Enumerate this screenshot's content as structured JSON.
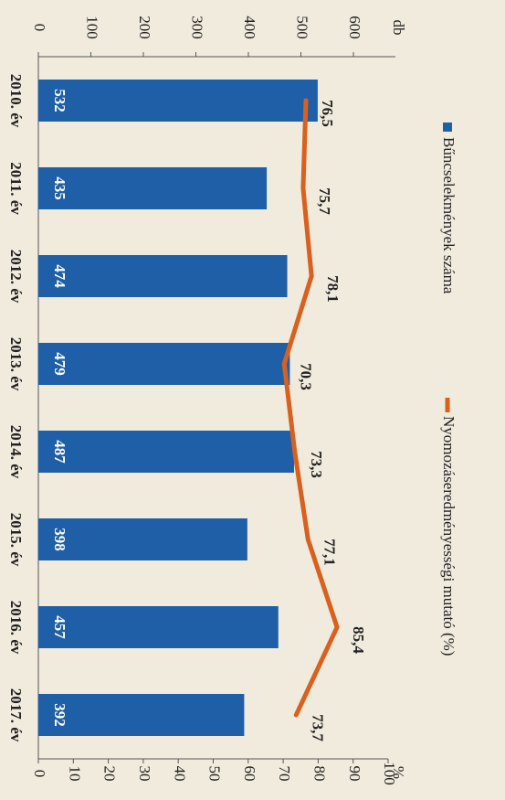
{
  "chart_data": {
    "type": "bar-line",
    "categories": [
      "2010. év",
      "2011. év",
      "2012. év",
      "2013. év",
      "2014. év",
      "2015. év",
      "2016. év",
      "2017. év"
    ],
    "series": [
      {
        "name": "Bűncselekmények száma",
        "type": "bar",
        "color": "#1f5fa8",
        "values": [
          532,
          435,
          474,
          479,
          487,
          398,
          457,
          392
        ]
      },
      {
        "name": "Nyomozáseredményességi mutató (%)",
        "type": "line",
        "axis": "y2",
        "color": "#d9601e",
        "values": [
          76.5,
          75.7,
          78.1,
          70.3,
          73.3,
          77.1,
          85.4,
          73.7
        ],
        "value_labels": [
          "76,5",
          "75,7",
          "78,1",
          "70,3",
          "73,3",
          "77,1",
          "85,4",
          "73,7"
        ]
      }
    ],
    "ylabel": "db",
    "y2label": "%",
    "ylim": [
      0,
      600
    ],
    "yticks": [
      0,
      100,
      200,
      300,
      400,
      500,
      600
    ],
    "y2lim": [
      0,
      100
    ],
    "y2ticks": [
      0,
      10,
      20,
      30,
      40,
      50,
      60,
      70,
      80,
      90,
      100
    ],
    "legend": "top"
  }
}
